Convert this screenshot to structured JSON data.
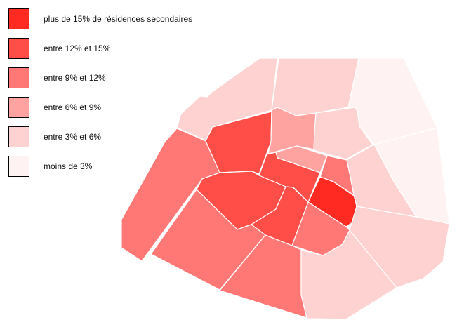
{
  "legend": {
    "items": [
      {
        "label": "plus de 15% de résidences secondaires",
        "color": "#ff2a22"
      },
      {
        "label": "entre 12% et 15%",
        "color": "#ff4d48"
      },
      {
        "label": "entre 9% et 12%",
        "color": "#ff7875"
      },
      {
        "label": "entre 6% et 9%",
        "color": "#ffa3a1"
      },
      {
        "label": "entre 3% et 6%",
        "color": "#ffd2d2"
      },
      {
        "label": "moins de 3%",
        "color": "#fff2f2"
      }
    ]
  },
  "map": {
    "border_color": "#ffffff",
    "region_classes": [
      4,
      4,
      5,
      5,
      2,
      1,
      3,
      4,
      3,
      2,
      0,
      1,
      1,
      1,
      2,
      2,
      2,
      4,
      4,
      4
    ]
  }
}
